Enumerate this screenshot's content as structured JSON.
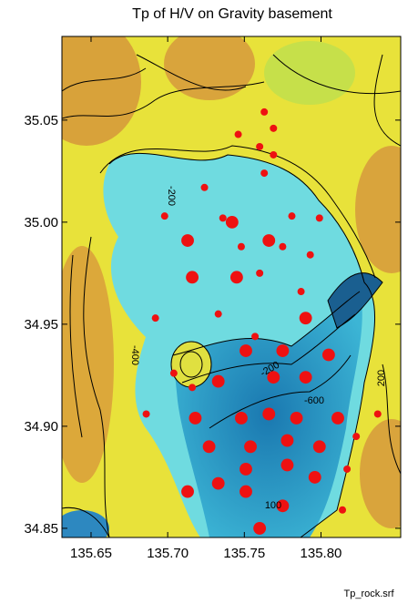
{
  "chart_data": {
    "type": "contour-scatter",
    "title": "Tp of  H/V on Gravity basement",
    "footer": "Tp_rock.srf",
    "xlim": [
      135.631,
      135.852
    ],
    "ylim": [
      34.8455,
      35.091
    ],
    "xticks": [
      {
        "value": 135.65,
        "label": "135.65"
      },
      {
        "value": 135.7,
        "label": "135.70"
      },
      {
        "value": 135.75,
        "label": "135.75"
      },
      {
        "value": 135.8,
        "label": "135.80"
      }
    ],
    "yticks": [
      {
        "value": 34.85,
        "label": "34.85"
      },
      {
        "value": 34.9,
        "label": "34.90"
      },
      {
        "value": 34.95,
        "label": "34.95"
      },
      {
        "value": 35.0,
        "label": "35.00"
      },
      {
        "value": 35.05,
        "label": "35.05"
      }
    ],
    "contour_labels": [
      "-200",
      "-400",
      "-600",
      "200",
      "100",
      "-200"
    ],
    "point_color": "#ee1111",
    "x": [
      135.763,
      135.769,
      135.746,
      135.76,
      135.769,
      135.763,
      135.724,
      135.698,
      135.736,
      135.781,
      135.799,
      135.748,
      135.775,
      135.793,
      135.76,
      135.787,
      135.733,
      135.692,
      135.757,
      135.704,
      135.716,
      135.686,
      135.837,
      135.823,
      135.817,
      135.814,
      135.713,
      135.742,
      135.766,
      135.716,
      135.745,
      135.79,
      135.751,
      135.775,
      135.805,
      135.769,
      135.79,
      135.733,
      135.718,
      135.748,
      135.766,
      135.784,
      135.811,
      135.727,
      135.754,
      135.778,
      135.799,
      135.733,
      135.751,
      135.778,
      135.796,
      135.713,
      135.751,
      135.775,
      135.76
    ],
    "y": [
      35.054,
      35.046,
      35.043,
      35.037,
      35.033,
      35.024,
      35.017,
      35.003,
      35.002,
      35.003,
      35.002,
      34.988,
      34.988,
      34.984,
      34.975,
      34.966,
      34.955,
      34.953,
      34.944,
      34.926,
      34.919,
      34.906,
      34.906,
      34.895,
      34.879,
      34.859,
      34.991,
      35.0,
      34.991,
      34.973,
      34.973,
      34.953,
      34.937,
      34.937,
      34.935,
      34.924,
      34.924,
      34.922,
      34.904,
      34.904,
      34.906,
      34.904,
      34.904,
      34.89,
      34.89,
      34.893,
      34.89,
      34.872,
      34.879,
      34.881,
      34.875,
      34.868,
      34.868,
      34.861,
      34.85
    ],
    "sizes": [
      1,
      1,
      1,
      1,
      1,
      1,
      1,
      1,
      1,
      1,
      1,
      1,
      1,
      1,
      1,
      1,
      1,
      1,
      1,
      1,
      1,
      1,
      1,
      1,
      1,
      1,
      3,
      3,
      3,
      3,
      3,
      3,
      3,
      3,
      3,
      3,
      3,
      3,
      3,
      3,
      3,
      3,
      3,
      3,
      3,
      3,
      3,
      3,
      3,
      3,
      3,
      3,
      3,
      3,
      3
    ]
  }
}
